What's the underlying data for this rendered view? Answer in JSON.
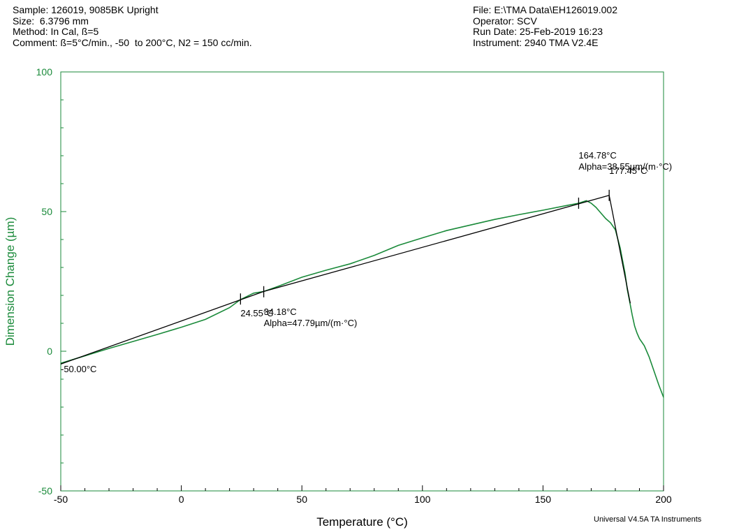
{
  "header": {
    "left": [
      "Sample: 126019, 9085BK Upright",
      "Size:  6.3796 mm",
      "Method: In Cal, ß=5",
      "Comment: ß=5°C/min., -50  to 200°C, N2 = 150 cc/min."
    ],
    "right": [
      "File: E:\\TMA Data\\EH126019.002",
      "Operator: SCV",
      "Run Date: 25-Feb-2019 16:23",
      "Instrument: 2940 TMA V2.4E"
    ]
  },
  "footer": "Universal V4.5A TA Instruments",
  "colors": {
    "curve": "#1a8a3a",
    "axis_left": "#1a8a3a",
    "frame": "#1a8a3a",
    "tangent": "#000000"
  },
  "chart_data": {
    "type": "line",
    "xlabel": "Temperature (°C)",
    "ylabel": "Dimension Change (µm)",
    "xlim": [
      -50,
      200
    ],
    "ylim": [
      -50,
      100
    ],
    "xticks": [
      -50,
      0,
      50,
      100,
      150,
      200
    ],
    "yticks": [
      -50,
      0,
      50,
      100
    ],
    "grid": false,
    "series": [
      {
        "x": [
          -50,
          -30,
          -10,
          0,
          10,
          20,
          24.55,
          30,
          34.18,
          40,
          50,
          60,
          70,
          80,
          90,
          100,
          110,
          120,
          130,
          140,
          150,
          160,
          164.78,
          168,
          170,
          172,
          174,
          176,
          178,
          180,
          182,
          184,
          185,
          186,
          187,
          188,
          189,
          190,
          192,
          194,
          196,
          198,
          200
        ],
        "y": [
          -4.3,
          1.0,
          6.0,
          8.6,
          11.4,
          15.6,
          18.5,
          20.8,
          21.4,
          23.2,
          26.5,
          29.0,
          31.3,
          34.3,
          37.9,
          40.6,
          43.2,
          45.2,
          47.2,
          48.9,
          50.5,
          52.2,
          53.0,
          53.9,
          53.0,
          51.5,
          49.5,
          47.5,
          46.0,
          43.5,
          37.0,
          28.0,
          22.0,
          17.5,
          13.0,
          9.0,
          6.5,
          4.5,
          2.0,
          -2.0,
          -7.0,
          -12.0,
          -16.5
        ]
      }
    ],
    "tangents": [
      {
        "x": [
          -50,
          34.18
        ],
        "y": [
          -4.6,
          21.4
        ]
      },
      {
        "x": [
          34.18,
          177.45
        ],
        "y": [
          21.4,
          55.8
        ]
      },
      {
        "x": [
          177.45,
          186.2
        ],
        "y": [
          55.8,
          17.2
        ]
      }
    ],
    "markers": [
      {
        "x": 24.55,
        "y": 18.7
      },
      {
        "x": 34.18,
        "y": 21.3
      },
      {
        "x": 164.78,
        "y": 53.0
      },
      {
        "x": 177.45,
        "y": 55.8
      }
    ],
    "annotations": [
      {
        "lines": [
          "-50.00°C"
        ],
        "x": -50.0,
        "y": -7.5
      },
      {
        "lines": [
          "24.55°C"
        ],
        "x": 24.55,
        "y": 12.5
      },
      {
        "lines": [
          "34.18°C",
          "Alpha=47.79µm/(m·°C)"
        ],
        "x": 34.18,
        "y": 13.0
      },
      {
        "lines": [
          "164.78°C",
          "Alpha=38.55µm/(m·°C)"
        ],
        "x": 164.78,
        "y": 69.0
      },
      {
        "lines": [
          "177.45°C"
        ],
        "x": 177.45,
        "y": 63.5
      }
    ]
  }
}
